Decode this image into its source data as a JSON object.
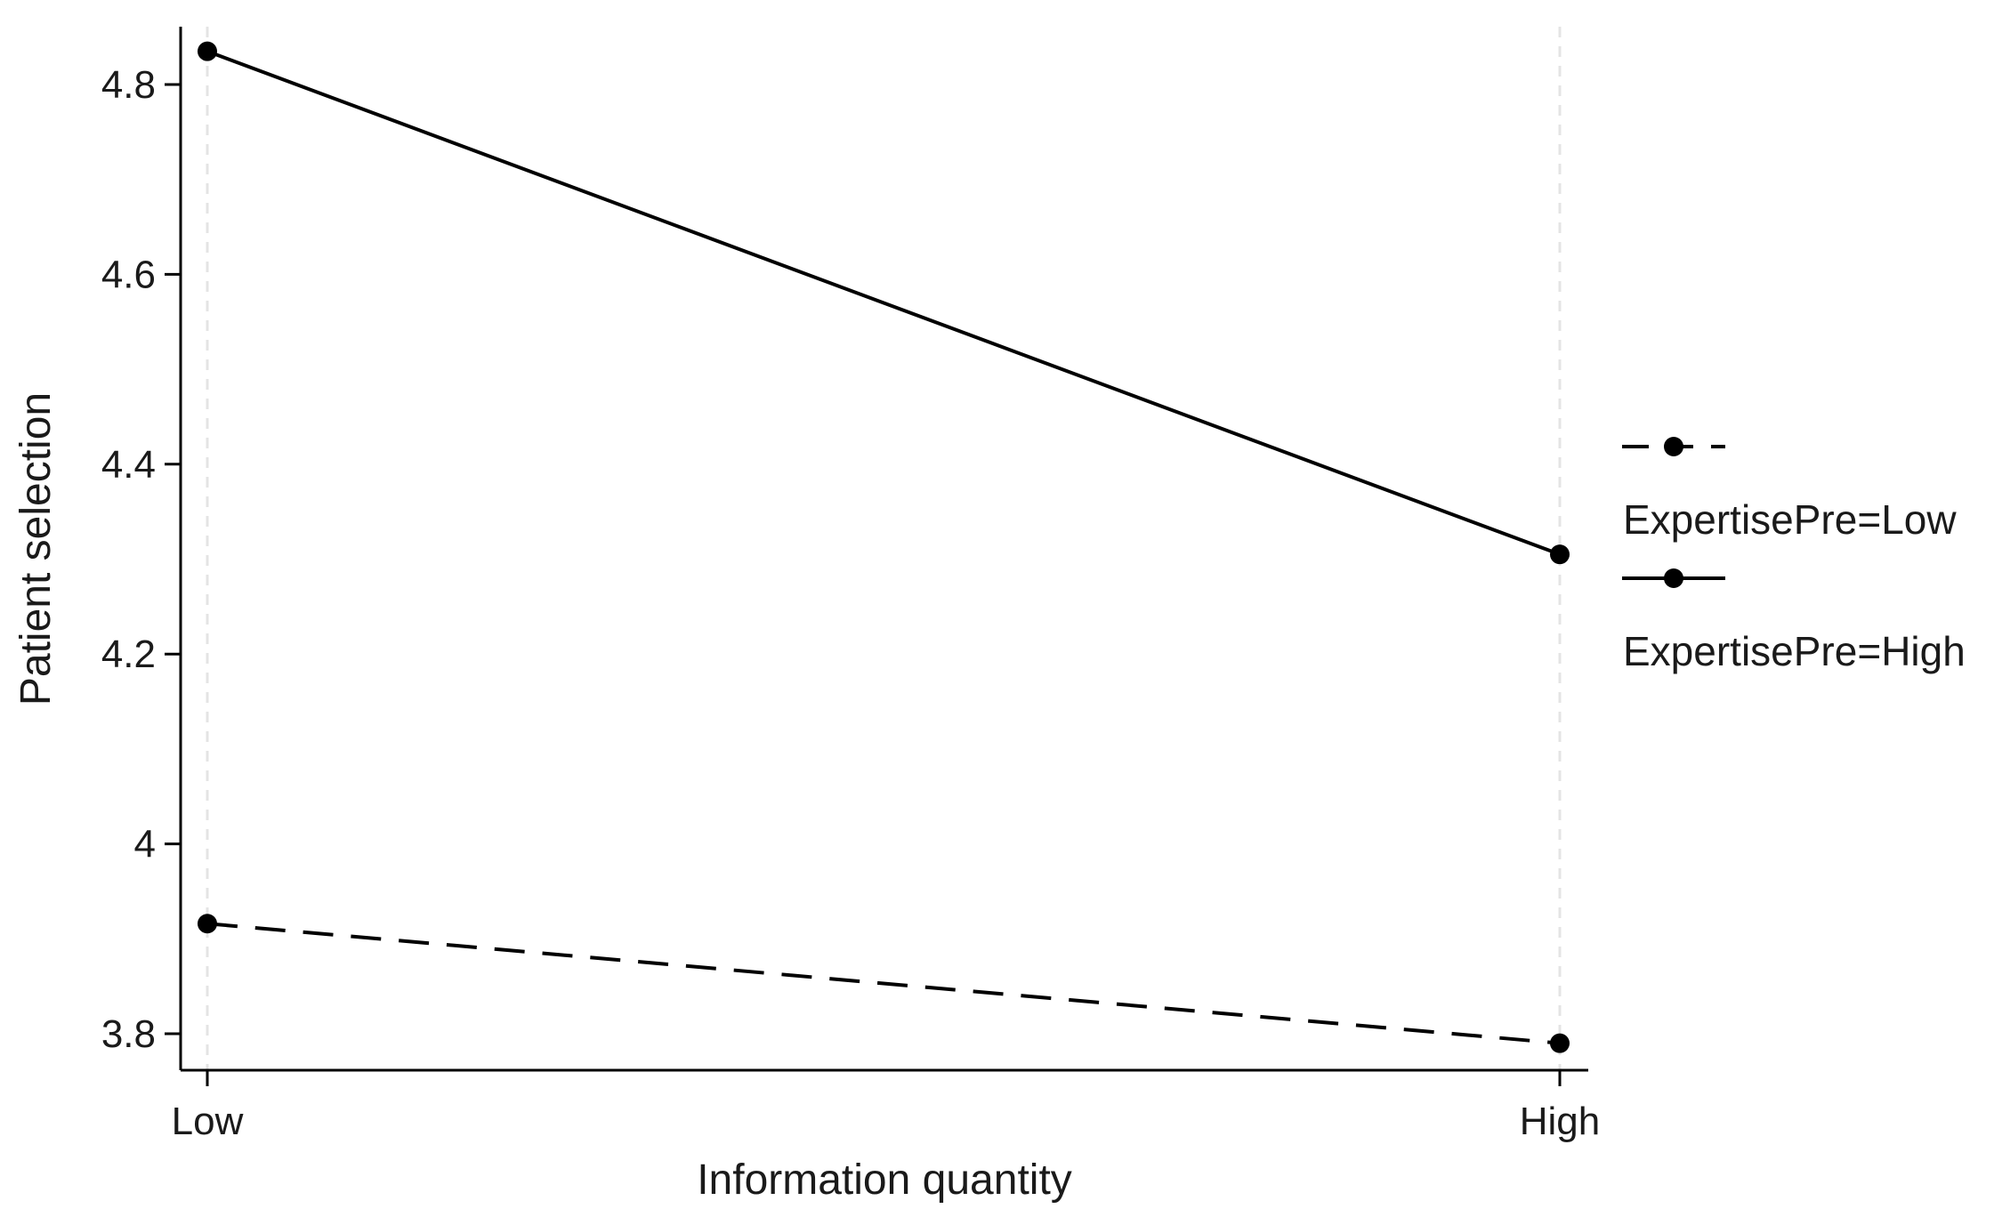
{
  "chart_data": {
    "type": "line",
    "title": "",
    "xlabel": "Information quantity",
    "ylabel": "Patient selection",
    "categories": [
      "Low",
      "High"
    ],
    "ylim": [
      3.77,
      4.87
    ],
    "yticks": [
      3.8,
      4,
      4.2,
      4.4,
      4.6,
      4.8
    ],
    "ytick_labels": [
      "3.8",
      "4",
      "4.2",
      "4.4",
      "4.6",
      "4.8"
    ],
    "grid": "vertical dashed reference lines at each category",
    "legend_placement": "right",
    "series": [
      {
        "name": "ExpertisePre=Low",
        "values": [
          3.916,
          3.79
        ],
        "line_style": "dashed",
        "marker": "filled-circle",
        "color": "#000000"
      },
      {
        "name": "ExpertisePre=High",
        "values": [
          4.835,
          4.305
        ],
        "line_style": "solid",
        "marker": "filled-circle",
        "color": "#000000"
      }
    ],
    "colors": {
      "axis": "#000000",
      "gridline": "#e4e4e4"
    }
  }
}
